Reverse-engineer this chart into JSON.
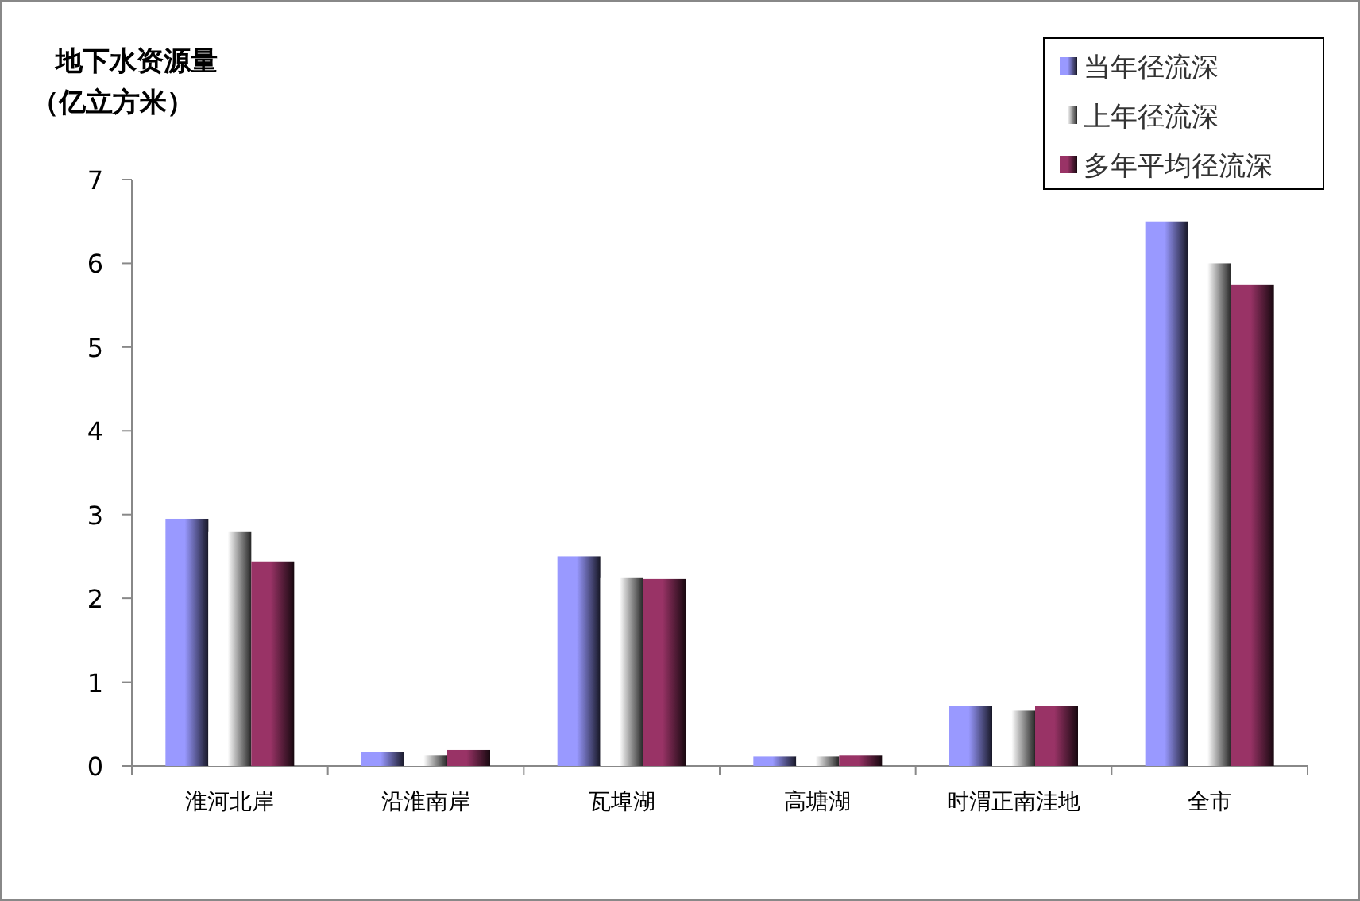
{
  "chart_data": {
    "type": "bar",
    "ylabel": "地下水资源量（亿立方米）",
    "categories": [
      "淮河北岸",
      "沿淮南岸",
      "瓦埠湖",
      "高塘湖",
      "时渭正南洼地",
      "全市"
    ],
    "series": [
      {
        "name": "当年径流深",
        "color": "#9999ff",
        "values": [
          2.95,
          0.17,
          2.5,
          0.11,
          0.72,
          6.5
        ]
      },
      {
        "name": "上年径流深",
        "color": "#ffffff",
        "values": [
          2.8,
          0.13,
          2.25,
          0.11,
          0.66,
          6.0
        ]
      },
      {
        "name": "多年平均径流深",
        "color": "#993366",
        "values": [
          2.44,
          0.19,
          2.23,
          0.13,
          0.72,
          5.74
        ]
      }
    ],
    "ylim": [
      0,
      7
    ],
    "yticks": [
      0,
      1,
      2,
      3,
      4,
      5,
      6,
      7
    ],
    "grid": false,
    "legend": "top right"
  }
}
